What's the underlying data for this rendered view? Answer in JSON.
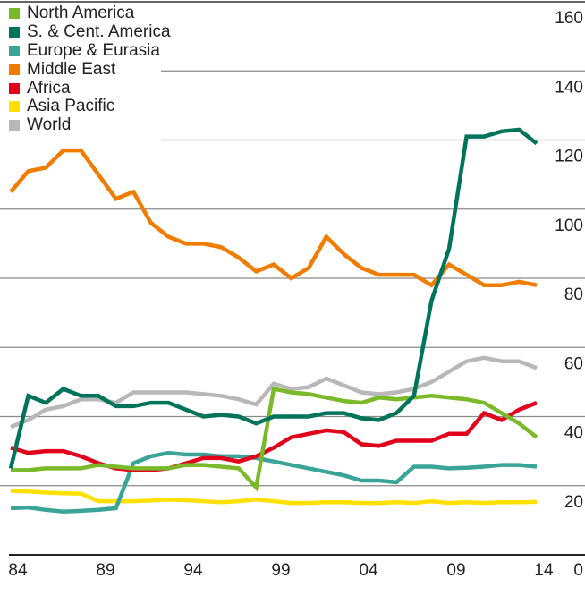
{
  "chart_data": {
    "type": "line",
    "title": "",
    "xlabel": "",
    "ylabel": "",
    "x": [
      1984,
      1985,
      1986,
      1987,
      1988,
      1989,
      1990,
      1991,
      1992,
      1993,
      1994,
      1995,
      1996,
      1997,
      1998,
      1999,
      2000,
      2001,
      2002,
      2003,
      2004,
      2005,
      2006,
      2007,
      2008,
      2009,
      2010,
      2011,
      2012,
      2013,
      2014
    ],
    "xlim": [
      1984,
      2016
    ],
    "ylim": [
      0,
      160
    ],
    "x_ticks": [
      1984,
      1989,
      1994,
      1999,
      2004,
      2009,
      2014
    ],
    "x_tick_labels": [
      "84",
      "89",
      "94",
      "99",
      "04",
      "09",
      "14"
    ],
    "y_ticks": [
      0,
      20,
      40,
      60,
      80,
      100,
      120,
      140,
      160
    ],
    "y_tick_labels": [
      "0",
      "20",
      "40",
      "60",
      "80",
      "100",
      "120",
      "140",
      "160"
    ],
    "y_axis_side": "right",
    "grid": true,
    "legend_position": "top-left",
    "series": [
      {
        "name": "North America",
        "color": "#7ab929",
        "values": [
          24.5,
          24.5,
          25,
          25,
          25,
          26,
          25.5,
          25,
          25,
          25,
          26,
          26,
          25.5,
          25,
          19.5,
          48,
          47,
          46.5,
          45.5,
          44.5,
          44,
          45.5,
          45,
          45.5,
          46,
          45.5,
          45,
          44,
          41,
          38,
          34
        ]
      },
      {
        "name": "S. & Cent. America",
        "color": "#00745a",
        "values": [
          25,
          46,
          44,
          48,
          46,
          46,
          43,
          43,
          44,
          44,
          42,
          40,
          40.5,
          40,
          38,
          40,
          40,
          40,
          41,
          41,
          39.5,
          39,
          41,
          46,
          73.5,
          88.5,
          121,
          121,
          122.5,
          123,
          119
        ]
      },
      {
        "name": "Europe & Eurasia",
        "color": "#3aa499",
        "values": [
          13.5,
          13.7,
          13,
          12.5,
          12.7,
          13,
          13.5,
          26.5,
          28.5,
          29.5,
          29,
          29,
          28.5,
          28.5,
          28,
          27,
          26,
          25,
          24,
          23,
          21.5,
          21.5,
          21,
          25.5,
          25.5,
          25,
          25.2,
          25.5,
          26,
          26,
          25.5
        ]
      },
      {
        "name": "Middle East",
        "color": "#f07c00",
        "values": [
          105,
          111,
          112,
          117,
          117,
          110,
          103,
          105,
          96,
          92,
          90,
          90,
          89,
          86,
          82,
          84,
          80,
          83,
          92,
          87,
          83,
          81,
          81,
          81,
          78,
          84,
          81,
          78,
          78,
          79,
          78
        ]
      },
      {
        "name": "Africa",
        "color": "#e3001b",
        "values": [
          31,
          29.5,
          30,
          30,
          28.5,
          26.5,
          25,
          24.5,
          24.5,
          25,
          26.5,
          28,
          28,
          27,
          28.5,
          31,
          34,
          35,
          36,
          35.5,
          32,
          31.5,
          33,
          33,
          33,
          35,
          35,
          41,
          39,
          42,
          44
        ]
      },
      {
        "name": "Asia Pacific",
        "color": "#ffe000",
        "values": [
          18.5,
          18.3,
          18,
          17.8,
          17.7,
          15.5,
          15.5,
          15.5,
          15.7,
          16,
          15.8,
          15.5,
          15.2,
          15.5,
          16,
          15.5,
          15,
          15,
          15.2,
          15.2,
          15,
          15,
          15.2,
          15,
          15.5,
          15,
          15.2,
          15,
          15.2,
          15.2,
          15.3
        ]
      },
      {
        "name": "World",
        "color": "#b8b8b8",
        "values": [
          37,
          39,
          42,
          43,
          45,
          45,
          44,
          47,
          47,
          47,
          47,
          46.5,
          46,
          45,
          43.5,
          49.5,
          48,
          48.5,
          51,
          49,
          47,
          46.5,
          47,
          48,
          50,
          53,
          56,
          57,
          56,
          56,
          54
        ]
      }
    ]
  }
}
